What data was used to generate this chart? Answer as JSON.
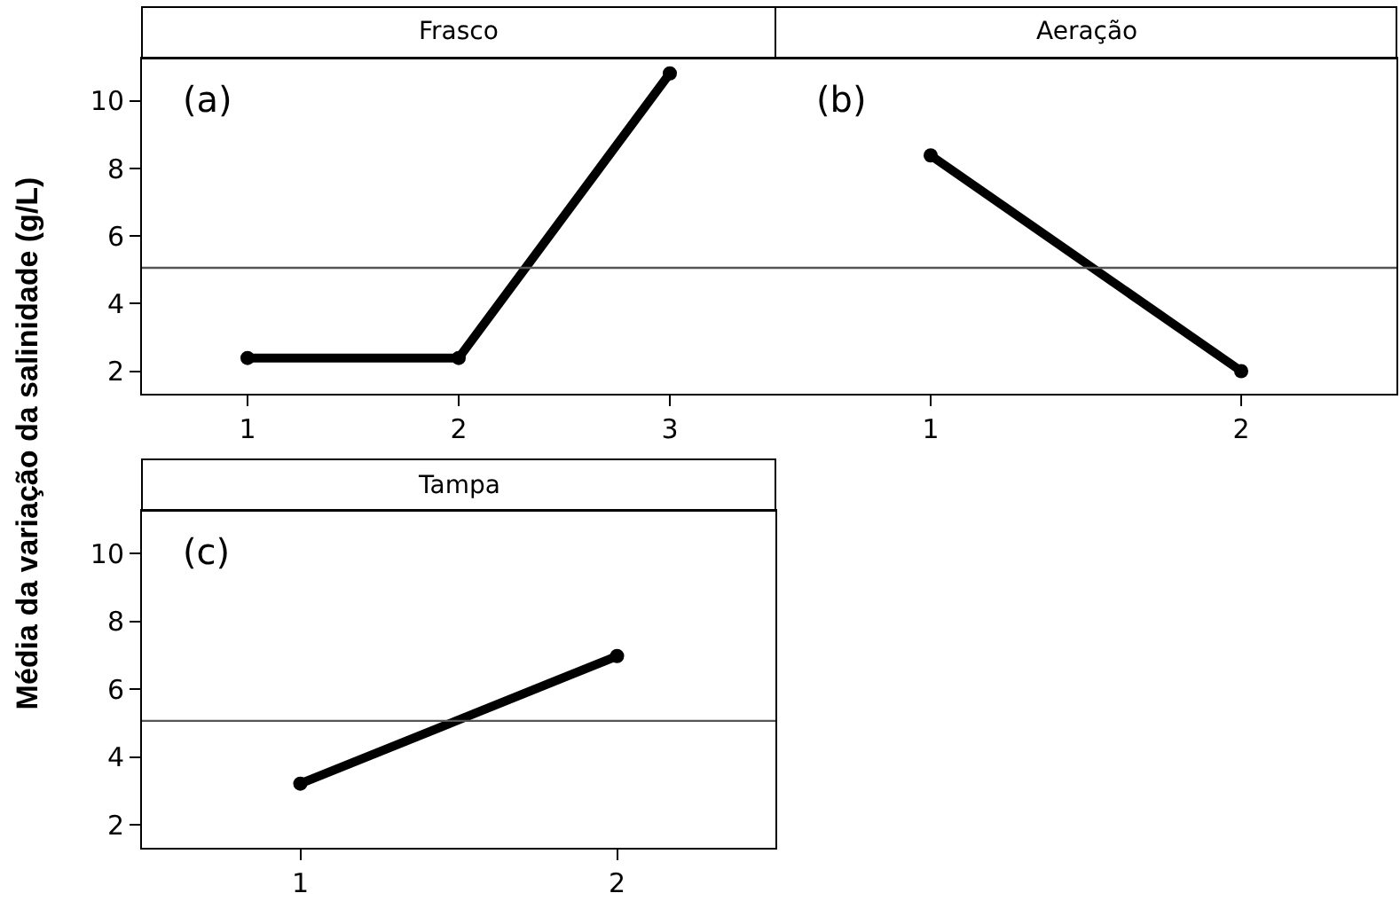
{
  "chart_data": [
    {
      "type": "line",
      "title": "Frasco",
      "ylabel": "Média da variação da salinidade (g/L)",
      "annotations": [
        "(a)"
      ],
      "categories": [
        "1",
        "2",
        "3"
      ],
      "series": [
        {
          "color": "#000000",
          "values": [
            2.39,
            2.39,
            10.82
          ]
        }
      ],
      "ylim": [
        1.33,
        11.26
      ],
      "yticks": [
        2,
        4,
        6,
        8,
        10
      ],
      "ref_lines": [
        {
          "axis": "y",
          "value": 5.06,
          "color": "#555555"
        }
      ],
      "marker": "circle",
      "line_style": "solid"
    },
    {
      "type": "line",
      "title": "Aeração",
      "annotations": [
        "(b)"
      ],
      "categories": [
        "1",
        "2"
      ],
      "series": [
        {
          "color": "#000000",
          "values": [
            8.39,
            2.0
          ]
        }
      ],
      "ylim": [
        1.33,
        11.26
      ],
      "yticks": [
        2,
        4,
        6,
        8,
        10
      ],
      "tick_labels": "x",
      "ref_lines": [
        {
          "axis": "y",
          "value": 5.06,
          "color": "#555555"
        }
      ],
      "marker": "circle",
      "line_style": "solid"
    },
    {
      "type": "line",
      "title": "Tampa",
      "annotations": [
        "(c)"
      ],
      "categories": [
        "1",
        "2"
      ],
      "series": [
        {
          "color": "#000000",
          "values": [
            3.22,
            6.98
          ]
        }
      ],
      "ylim": [
        1.33,
        11.26
      ],
      "yticks": [
        2,
        4,
        6,
        8,
        10
      ],
      "ref_lines": [
        {
          "axis": "y",
          "value": 5.07,
          "color": "#555555"
        }
      ],
      "marker": "circle",
      "line_style": "solid"
    }
  ]
}
